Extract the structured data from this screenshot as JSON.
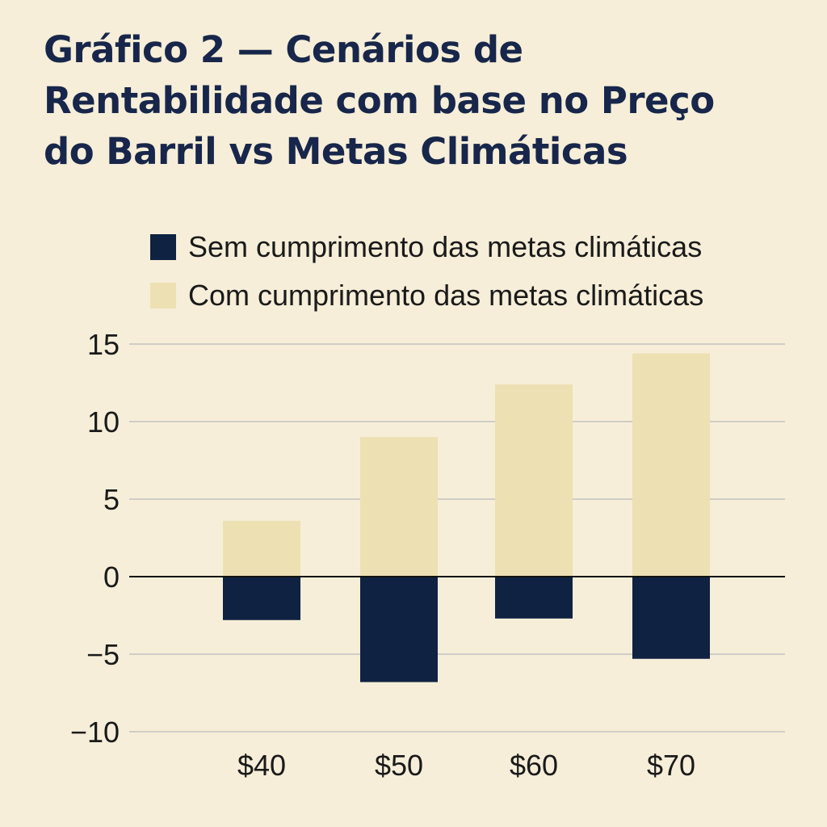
{
  "chart_data": {
    "type": "bar",
    "title_lines": [
      "Gráfico 2 — Cenários de",
      "Rentabilidade com base no Preço",
      "do Barril vs Metas Climáticas"
    ],
    "title": "Gráfico 2 — Cenários de Rentabilidade com base no Preço do Barril vs Metas Climáticas",
    "xlabel": "",
    "ylabel": "",
    "categories": [
      "$40",
      "$50",
      "$60",
      "$70"
    ],
    "series": [
      {
        "name": "Sem cumprimento das metas climáticas",
        "color": "#0f2242",
        "values": [
          -2.8,
          -6.8,
          -2.7,
          -5.3
        ]
      },
      {
        "name": "Com cumprimento das metas climáticas",
        "color": "#ede0b3",
        "values": [
          3.6,
          9.0,
          12.4,
          14.4
        ]
      }
    ],
    "ylim": [
      -10,
      15
    ],
    "yticks": [
      15,
      10,
      5,
      0,
      -5,
      -10
    ],
    "ytick_labels": [
      "15",
      "10",
      "5",
      "0",
      "−5",
      "−10"
    ],
    "grid": true,
    "legend_position": "top"
  }
}
